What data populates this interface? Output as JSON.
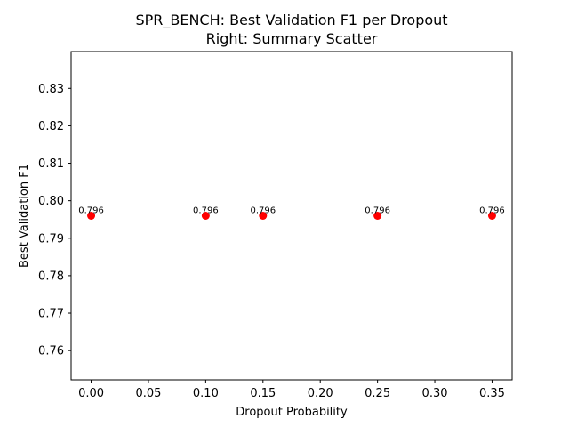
{
  "chart_data": {
    "type": "scatter",
    "title_line1": "SPR_BENCH: Best Validation F1 per Dropout",
    "title_line2": "Right: Summary Scatter",
    "xlabel": "Dropout Probability",
    "ylabel": "Best Validation F1",
    "xlim": [
      -0.0175,
      0.3675
    ],
    "ylim": [
      0.7522,
      0.8398
    ],
    "xticks": [
      0.0,
      0.05,
      0.1,
      0.15,
      0.2,
      0.25,
      0.3,
      0.35
    ],
    "xtick_labels": [
      "0.00",
      "0.05",
      "0.10",
      "0.15",
      "0.20",
      "0.25",
      "0.30",
      "0.35"
    ],
    "yticks": [
      0.76,
      0.77,
      0.78,
      0.79,
      0.8,
      0.81,
      0.82,
      0.83
    ],
    "ytick_labels": [
      "0.76",
      "0.77",
      "0.78",
      "0.79",
      "0.80",
      "0.81",
      "0.82",
      "0.83"
    ],
    "grid": false,
    "marker_color": "#ff0000",
    "points": [
      {
        "x": 0.0,
        "y": 0.796,
        "label": "0.796"
      },
      {
        "x": 0.1,
        "y": 0.796,
        "label": "0.796"
      },
      {
        "x": 0.15,
        "y": 0.796,
        "label": "0.796"
      },
      {
        "x": 0.25,
        "y": 0.796,
        "label": "0.796"
      },
      {
        "x": 0.35,
        "y": 0.796,
        "label": "0.796"
      }
    ]
  }
}
